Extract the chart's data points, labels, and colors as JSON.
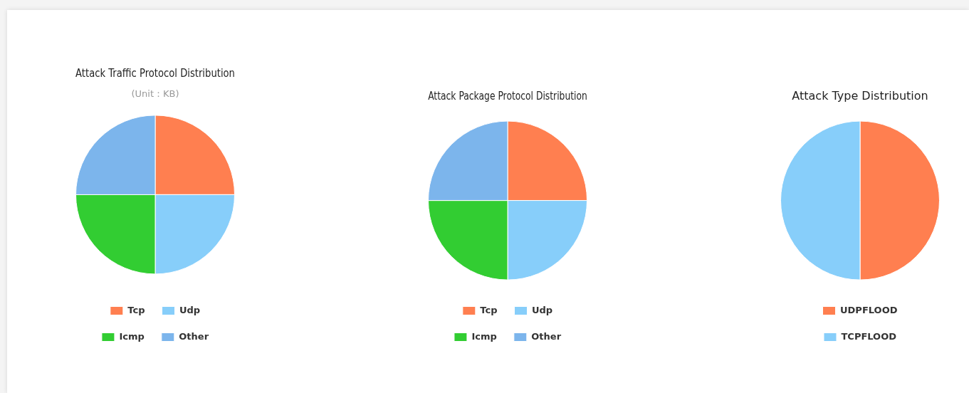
{
  "chart_data": [
    {
      "type": "pie",
      "title": "Attack Traffic Protocol Distribution",
      "subtitle": "(Unit：KB)",
      "categories": [
        "Tcp",
        "Udp",
        "Icmp",
        "Other"
      ],
      "values": [
        25,
        25,
        25,
        25
      ],
      "colors": [
        "#ff7f50",
        "#87cefa",
        "#32cd32",
        "#7cb5ec"
      ],
      "legend": "bottom"
    },
    {
      "type": "pie",
      "title": "Attack Package Protocol Distribution",
      "categories": [
        "Tcp",
        "Udp",
        "Icmp",
        "Other"
      ],
      "values": [
        25,
        25,
        25,
        25
      ],
      "colors": [
        "#ff7f50",
        "#87cefa",
        "#32cd32",
        "#7cb5ec"
      ],
      "legend": "bottom"
    },
    {
      "type": "pie",
      "title": "Attack Type Distribution",
      "categories": [
        "UDPFLOOD",
        "TCPFLOOD"
      ],
      "values": [
        50,
        50
      ],
      "colors": [
        "#ff7f50",
        "#87cefa"
      ],
      "legend": "bottom"
    }
  ]
}
